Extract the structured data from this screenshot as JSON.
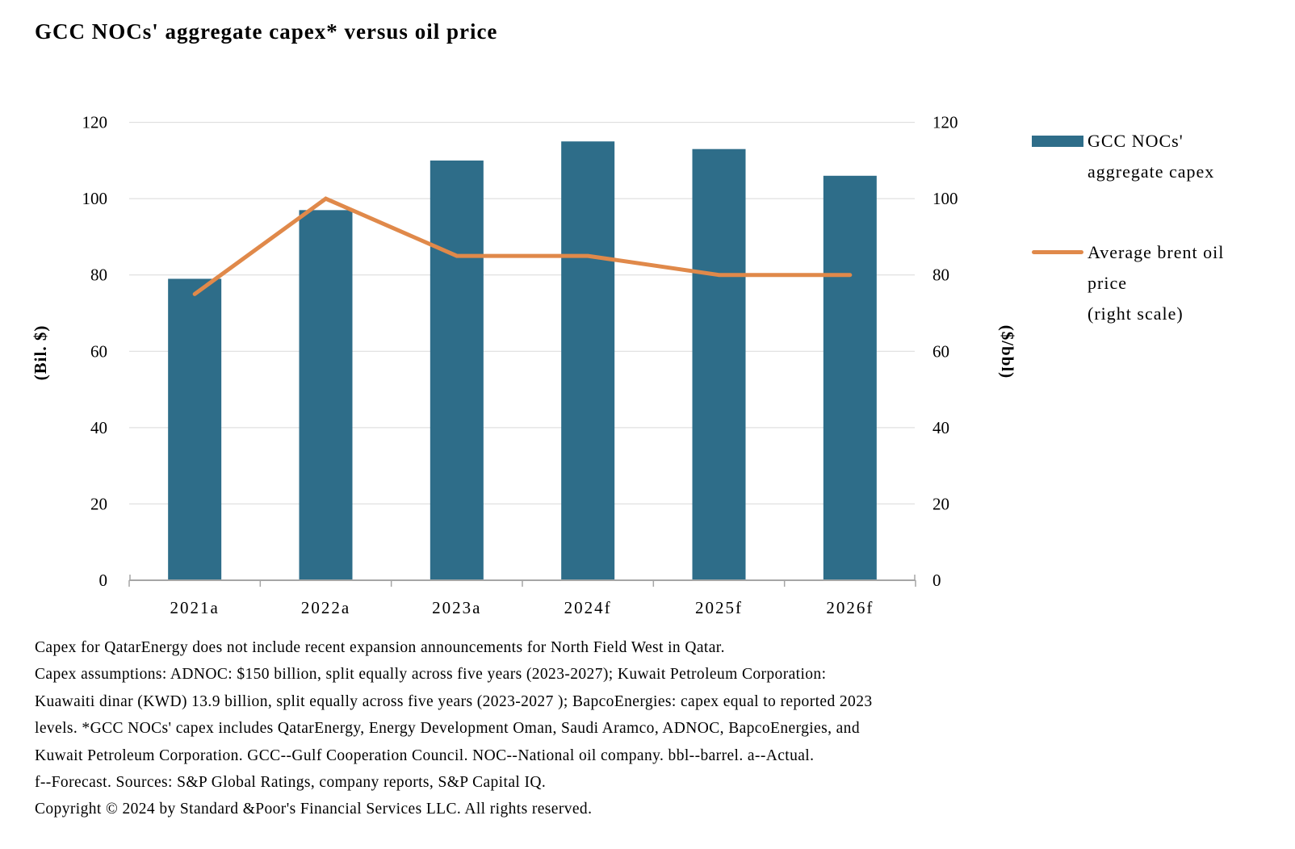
{
  "title": "GCC NOCs' aggregate capex* versus oil price",
  "colors": {
    "bar": "#2e6d89",
    "line": "#e0894a",
    "grid": "#d9d9d9",
    "axis": "#a6a6a6",
    "text": "#000000",
    "background": "#ffffff"
  },
  "chart_data": {
    "type": "combo-bar-line",
    "title": "GCC NOCs' aggregate capex* versus oil price",
    "categories": [
      "2021a",
      "2022a",
      "2023a",
      "2024f",
      "2025f",
      "2026f"
    ],
    "series": [
      {
        "name": "GCC NOCs' aggregate capex",
        "type": "bar",
        "axis": "left",
        "color": "#2e6d89",
        "values": [
          79,
          97,
          110,
          115,
          113,
          106
        ]
      },
      {
        "name": "Average brent oil price (right scale)",
        "type": "line",
        "axis": "right",
        "color": "#e0894a",
        "values": [
          75,
          100,
          85,
          85,
          80,
          80
        ]
      }
    ],
    "left_axis": {
      "label": "(Bil. $)",
      "min": 0,
      "max": 120,
      "step": 20
    },
    "right_axis": {
      "label": "($/bbl)",
      "min": 0,
      "max": 120,
      "step": 20
    },
    "grid": true,
    "legend_position": "right"
  },
  "legend": {
    "items": [
      {
        "swatch": "bar",
        "color": "#2e6d89",
        "lines": [
          "GCC NOCs'",
          "aggregate capex"
        ]
      },
      {
        "swatch": "line",
        "color": "#e0894a",
        "lines": [
          "Average brent oil",
          "price",
          "(right scale)"
        ]
      }
    ]
  },
  "footnotes": [
    "Capex for QatarEnergy does not include recent expansion announcements for North Field West in Qatar.",
    "Capex assumptions: ADNOC: $150 billion, split equally across five years (2023-2027); Kuwait Petroleum Corporation:",
    "Kuawaiti dinar (KWD) 13.9 billion, split equally across five years (2023-2027 ); BapcoEnergies: capex equal to reported 2023",
    "levels. *GCC NOCs' capex includes QatarEnergy, Energy Development Oman, Saudi Aramco, ADNOC, BapcoEnergies, and",
    "Kuwait Petroleum Corporation. GCC--Gulf Cooperation Council. NOC--National oil company. bbl--barrel. a--Actual.",
    "f--Forecast. Sources: S&P Global Ratings, company reports, S&P Capital IQ.",
    "Copyright © 2024 by Standard &Poor's Financial Services LLC. All rights reserved."
  ]
}
